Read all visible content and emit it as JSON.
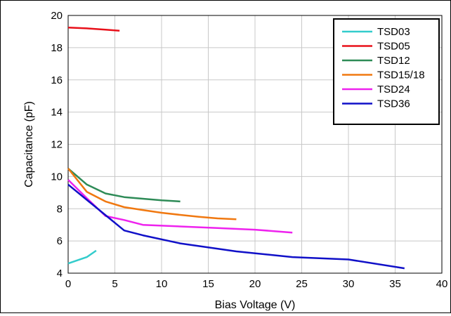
{
  "chart_data": {
    "type": "line",
    "title": "",
    "xlabel": "Bias Voltage (V)",
    "ylabel": "Capacitance (pF)",
    "xlim": [
      0,
      40
    ],
    "ylim": [
      4,
      20
    ],
    "xticks": [
      0,
      5,
      10,
      15,
      20,
      25,
      30,
      35,
      40
    ],
    "yticks": [
      4,
      6,
      8,
      10,
      12,
      14,
      16,
      18,
      20
    ],
    "grid": true,
    "legend": "top-right",
    "series": [
      {
        "name": "TSD03",
        "color": "#33cccc",
        "x": [
          0,
          2,
          3
        ],
        "y": [
          4.6,
          5.0,
          5.4
        ]
      },
      {
        "name": "TSD05",
        "color": "#e8101a",
        "x": [
          0,
          2,
          4,
          5.5
        ],
        "y": [
          19.25,
          19.2,
          19.12,
          19.05
        ]
      },
      {
        "name": "TSD12",
        "color": "#2e8b57",
        "x": [
          0,
          2,
          4,
          6,
          8,
          10,
          12
        ],
        "y": [
          10.5,
          9.5,
          8.95,
          8.72,
          8.62,
          8.52,
          8.45
        ]
      },
      {
        "name": "TSD15/18",
        "color": "#f07810",
        "x": [
          0,
          2,
          4,
          6,
          8,
          10,
          12,
          14,
          16,
          18
        ],
        "y": [
          10.5,
          9.05,
          8.45,
          8.1,
          7.92,
          7.75,
          7.62,
          7.5,
          7.4,
          7.35
        ]
      },
      {
        "name": "TSD24",
        "color": "#ee22ee",
        "x": [
          0,
          2,
          4,
          6,
          8,
          12,
          16,
          20,
          24
        ],
        "y": [
          9.8,
          8.65,
          7.55,
          7.3,
          7.0,
          6.9,
          6.8,
          6.7,
          6.52
        ]
      },
      {
        "name": "TSD36",
        "color": "#1010c8",
        "x": [
          0,
          2,
          4,
          6,
          8,
          12,
          18,
          24,
          30,
          36
        ],
        "y": [
          9.5,
          8.55,
          7.6,
          6.65,
          6.35,
          5.85,
          5.35,
          5.0,
          4.85,
          4.3
        ]
      }
    ]
  }
}
